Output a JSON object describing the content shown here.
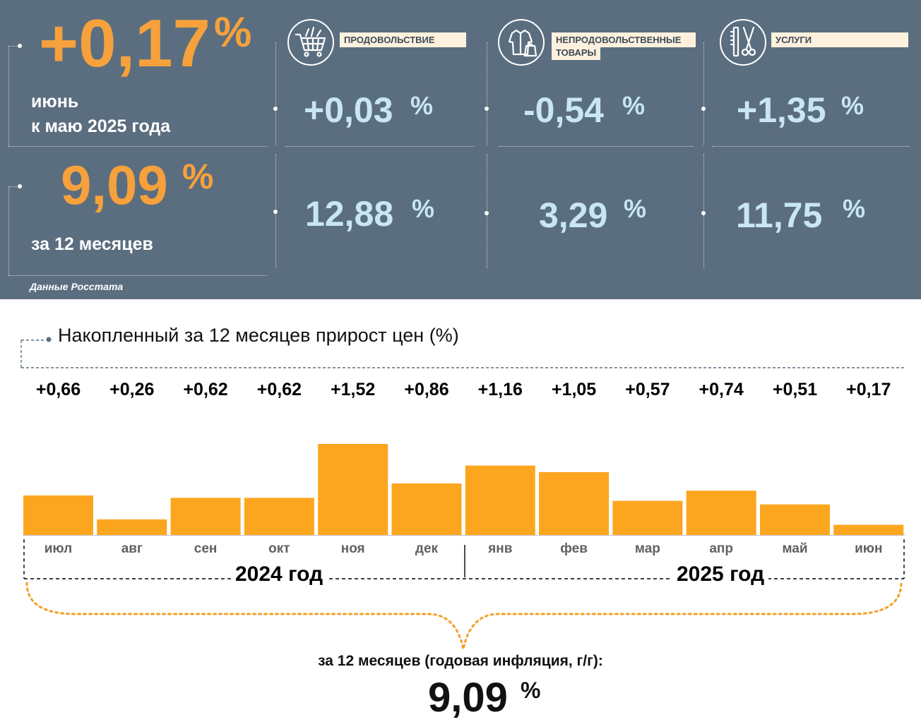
{
  "summary": {
    "monthly_value": "+0,17",
    "monthly_pct": "%",
    "monthly_caption_line1": "июнь",
    "monthly_caption_line2": "к маю 2025 года",
    "annual_value": "9,09",
    "annual_pct": "%",
    "annual_caption": "за 12 месяцев",
    "source": "Данные Росстата"
  },
  "categories": [
    {
      "label": "ПРОДОВОЛЬСТВИЕ",
      "icon": "shopping-cart-icon",
      "monthly": "+0,03",
      "annual": "12,88",
      "pct": "%"
    },
    {
      "label_line1": "НЕПРОДОВОЛЬСТВЕННЫЕ",
      "label_line2": "ТОВАРЫ",
      "icon": "clothing-icon",
      "monthly": "-0,54",
      "annual": "3,29",
      "pct": "%"
    },
    {
      "label": "УСЛУГИ",
      "icon": "scissors-comb-icon",
      "monthly": "+1,35",
      "annual": "11,75",
      "pct": "%"
    }
  ],
  "chart_data": {
    "type": "bar",
    "title": "Накопленный за 12 месяцев прирост цен (%)",
    "categories": [
      "июл",
      "авг",
      "сен",
      "окт",
      "ноя",
      "дек",
      "янв",
      "фев",
      "мар",
      "апр",
      "май",
      "июн"
    ],
    "values": [
      0.66,
      0.26,
      0.62,
      0.62,
      1.52,
      0.86,
      1.16,
      1.05,
      0.57,
      0.74,
      0.51,
      0.17
    ],
    "value_labels": [
      "+0,66",
      "+0,26",
      "+0,62",
      "+0,62",
      "+1,52",
      "+0,86",
      "+1,16",
      "+1,05",
      "+0,57",
      "+0,74",
      "+0,51",
      "+0,17"
    ],
    "year_labels": [
      "2024 год",
      "2025 год"
    ],
    "bar_color": "#fca61f",
    "ylim": [
      0,
      1.52
    ]
  },
  "footer": {
    "caption": "за 12 месяцев (годовая инфляция, г/г):",
    "value": "9,09",
    "pct": "%"
  },
  "colors": {
    "panel_bg": "#5b6e80",
    "accent_orange": "#f6a13b",
    "value_blue": "#c8e6f5",
    "label_bg": "#fdf1de"
  }
}
